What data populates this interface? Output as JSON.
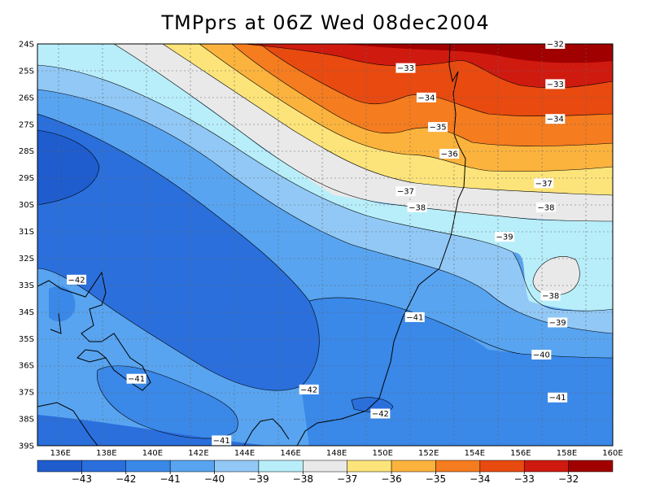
{
  "title": "TMPprs at 06Z Wed 08dec2004",
  "map": {
    "lat_ticks": [
      "24S",
      "25S",
      "26S",
      "27S",
      "28S",
      "29S",
      "30S",
      "31S",
      "32S",
      "33S",
      "34S",
      "35S",
      "36S",
      "37S",
      "38S",
      "39S"
    ],
    "lon_ticks": [
      "136E",
      "138E",
      "140E",
      "142E",
      "144E",
      "146E",
      "148E",
      "150E",
      "152E",
      "154E",
      "156E",
      "158E",
      "160E"
    ]
  },
  "contour_labels": [
    {
      "text": "-32",
      "lon": 157.5,
      "lat": 24.0
    },
    {
      "text": "-33",
      "lon": 151.0,
      "lat": 24.9
    },
    {
      "text": "-33",
      "lon": 157.5,
      "lat": 25.5
    },
    {
      "text": "-34",
      "lon": 151.9,
      "lat": 26.0
    },
    {
      "text": "-34",
      "lon": 157.5,
      "lat": 26.8
    },
    {
      "text": "-35",
      "lon": 152.4,
      "lat": 27.1
    },
    {
      "text": "-36",
      "lon": 152.9,
      "lat": 28.1
    },
    {
      "text": "-37",
      "lon": 151.0,
      "lat": 29.5
    },
    {
      "text": "-37",
      "lon": 157.0,
      "lat": 29.2
    },
    {
      "text": "-38",
      "lon": 151.5,
      "lat": 30.1
    },
    {
      "text": "-38",
      "lon": 157.1,
      "lat": 30.1
    },
    {
      "text": "-38",
      "lon": 157.3,
      "lat": 33.4
    },
    {
      "text": "-39",
      "lon": 155.3,
      "lat": 31.2
    },
    {
      "text": "-39",
      "lon": 157.6,
      "lat": 34.4
    },
    {
      "text": "-40",
      "lon": 156.9,
      "lat": 35.6
    },
    {
      "text": "-41",
      "lon": 151.4,
      "lat": 34.2
    },
    {
      "text": "-41",
      "lon": 157.6,
      "lat": 37.2
    },
    {
      "text": "-41",
      "lon": 139.3,
      "lat": 36.5
    },
    {
      "text": "-41",
      "lon": 143.0,
      "lat": 38.8
    },
    {
      "text": "-42",
      "lon": 136.7,
      "lat": 32.8
    },
    {
      "text": "-42",
      "lon": 146.8,
      "lat": 36.9
    },
    {
      "text": "-42",
      "lon": 149.9,
      "lat": 37.8
    }
  ],
  "colorbar": {
    "labels": [
      "-43",
      "-42",
      "-41",
      "-40",
      "-39",
      "-38",
      "-37",
      "-36",
      "-35",
      "-34",
      "-33",
      "-32"
    ],
    "colors": [
      "#1f5ccd",
      "#2a6fdc",
      "#3a88e8",
      "#58a4f0",
      "#92c8f5",
      "#b8eefa",
      "#e9e9e9",
      "#fde47a",
      "#fbb33d",
      "#f57c1f",
      "#e84a10",
      "#cf1a10",
      "#a00000"
    ]
  }
}
